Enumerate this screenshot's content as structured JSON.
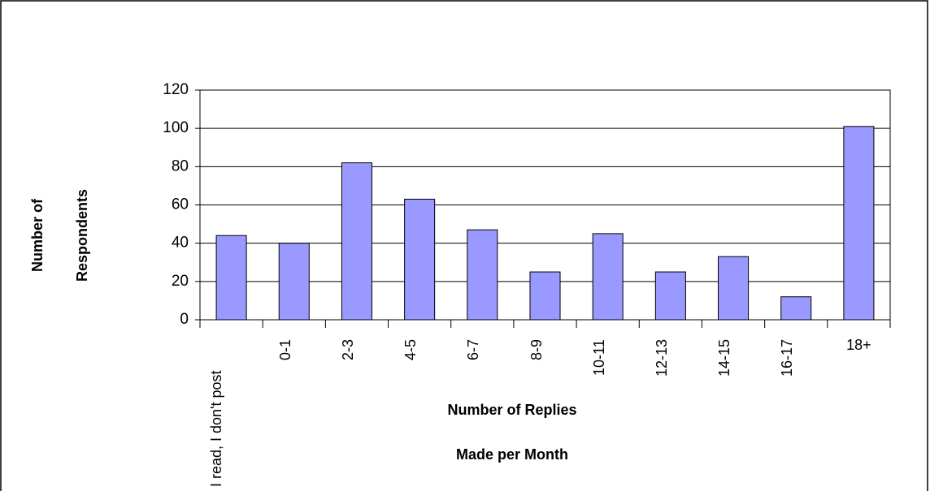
{
  "chart_data": {
    "type": "bar",
    "categories": [
      "I read, I don't post",
      "0-1",
      "2-3",
      "4-5",
      "6-7",
      "8-9",
      "10-11",
      "12-13",
      "14-15",
      "16-17",
      "18+"
    ],
    "values": [
      44,
      40,
      82,
      63,
      47,
      25,
      45,
      25,
      33,
      12,
      101
    ],
    "color": "#9999ff",
    "ylim": [
      0,
      120
    ],
    "yticks": [
      0,
      20,
      40,
      60,
      80,
      100,
      120
    ],
    "grid": true,
    "x_label": [
      "Number of Replies",
      "Made per Month"
    ],
    "y_label": [
      "Number of",
      "Respondents"
    ]
  }
}
